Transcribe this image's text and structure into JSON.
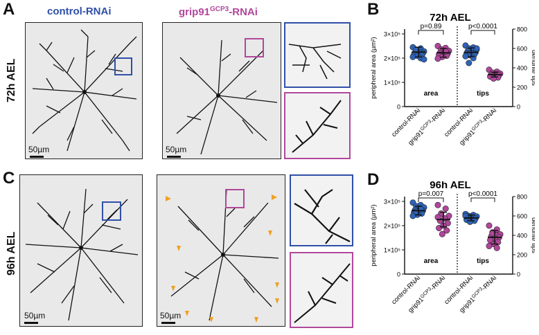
{
  "panels": {
    "A": "A",
    "B": "B",
    "C": "C",
    "D": "D"
  },
  "columns": {
    "control": "control-RNAi",
    "grip_base": "grip91",
    "grip_sup": "GCP3",
    "grip_suffix": "-RNAi"
  },
  "rows": {
    "top": "72h AEL",
    "bottom": "96h AEL"
  },
  "scale_bar": "50µm",
  "colors": {
    "control": "#2f63b8",
    "grip": "#b0479b",
    "box_control": "#2f4fa8",
    "box_grip": "#b0479b",
    "arrowhead": "#f0a020"
  },
  "chart_data": [
    {
      "type": "scatter",
      "panel": "B",
      "title": "72h AEL",
      "ylabel_left": "peripheral area (µm²)",
      "ylabel_right": "dendrite tips",
      "yticks_left": [
        "0",
        "1×10⁵",
        "2×10⁵",
        "3×10⁵"
      ],
      "yticks_right": [
        "0",
        "200",
        "400",
        "600",
        "800"
      ],
      "ylim_left": [
        0,
        320000
      ],
      "ylim_right": [
        0,
        800
      ],
      "groups": [
        {
          "label": "area",
          "p_value": "p=0.89"
        },
        {
          "label": "tips",
          "p_value": "p<0.0001"
        }
      ],
      "categories": [
        "control-RNAi",
        "grip91GCP3-RNAi",
        "control-RNAi",
        "grip91GCP3-RNAi"
      ],
      "series": [
        {
          "name": "control-RNAi",
          "axis": "left",
          "mean": 225000,
          "sd": 20000,
          "values": [
            245000,
            240000,
            232000,
            228000,
            225000,
            222000,
            220000,
            218000,
            215000,
            212000,
            210000,
            205000,
            200000,
            235000,
            195000
          ]
        },
        {
          "name": "grip91GCP3-RNAi",
          "axis": "left",
          "mean": 222000,
          "sd": 18000,
          "values": [
            250000,
            242000,
            236000,
            230000,
            226000,
            222000,
            220000,
            218000,
            214000,
            210000,
            205000,
            198000,
            228000
          ]
        },
        {
          "name": "control-RNAi",
          "axis": "right",
          "mean": 560,
          "sd": 45,
          "values": [
            630,
            610,
            600,
            590,
            580,
            570,
            560,
            555,
            550,
            540,
            530,
            520,
            500,
            450,
            600
          ]
        },
        {
          "name": "grip91GCP3-RNAi",
          "axis": "right",
          "mean": 330,
          "sd": 25,
          "values": [
            380,
            360,
            350,
            340,
            335,
            330,
            325,
            320,
            310,
            300,
            290
          ]
        }
      ]
    },
    {
      "type": "scatter",
      "panel": "D",
      "title": "96h AEL",
      "ylabel_left": "peripheral area (µm²)",
      "ylabel_right": "dendrite tips",
      "yticks_left": [
        "0",
        "1×10⁵",
        "2×10⁵",
        "3×10⁵"
      ],
      "yticks_right": [
        "0",
        "200",
        "400",
        "600",
        "800"
      ],
      "ylim_left": [
        0,
        320000
      ],
      "ylim_right": [
        0,
        800
      ],
      "groups": [
        {
          "label": "area",
          "p_value": "p=0.007"
        },
        {
          "label": "tips",
          "p_value": "p<0.0001"
        }
      ],
      "categories": [
        "control-RNAi",
        "grip91GCP3-RNAi",
        "control-RNAi",
        "grip91GCP3-RNAi"
      ],
      "series": [
        {
          "name": "control-RNAi",
          "axis": "left",
          "mean": 262000,
          "sd": 18000,
          "values": [
            295000,
            285000,
            280000,
            275000,
            270000,
            265000,
            262000,
            260000,
            255000,
            250000,
            245000,
            240000,
            268000,
            258000
          ]
        },
        {
          "name": "grip91GCP3-RNAi",
          "axis": "left",
          "mean": 225000,
          "sd": 30000,
          "values": [
            285000,
            270000,
            250000,
            240000,
            230000,
            220000,
            210000,
            200000,
            190000,
            180000,
            165000,
            235000
          ]
        },
        {
          "name": "control-RNAi",
          "axis": "right",
          "mean": 580,
          "sd": 30,
          "values": [
            620,
            610,
            600,
            595,
            585,
            580,
            575,
            570,
            560,
            550,
            540,
            600
          ]
        },
        {
          "name": "grip91GCP3-RNAi",
          "axis": "right",
          "mean": 380,
          "sd": 70,
          "values": [
            500,
            460,
            430,
            410,
            400,
            390,
            380,
            370,
            350,
            330,
            310,
            290,
            270,
            420
          ]
        }
      ]
    }
  ]
}
